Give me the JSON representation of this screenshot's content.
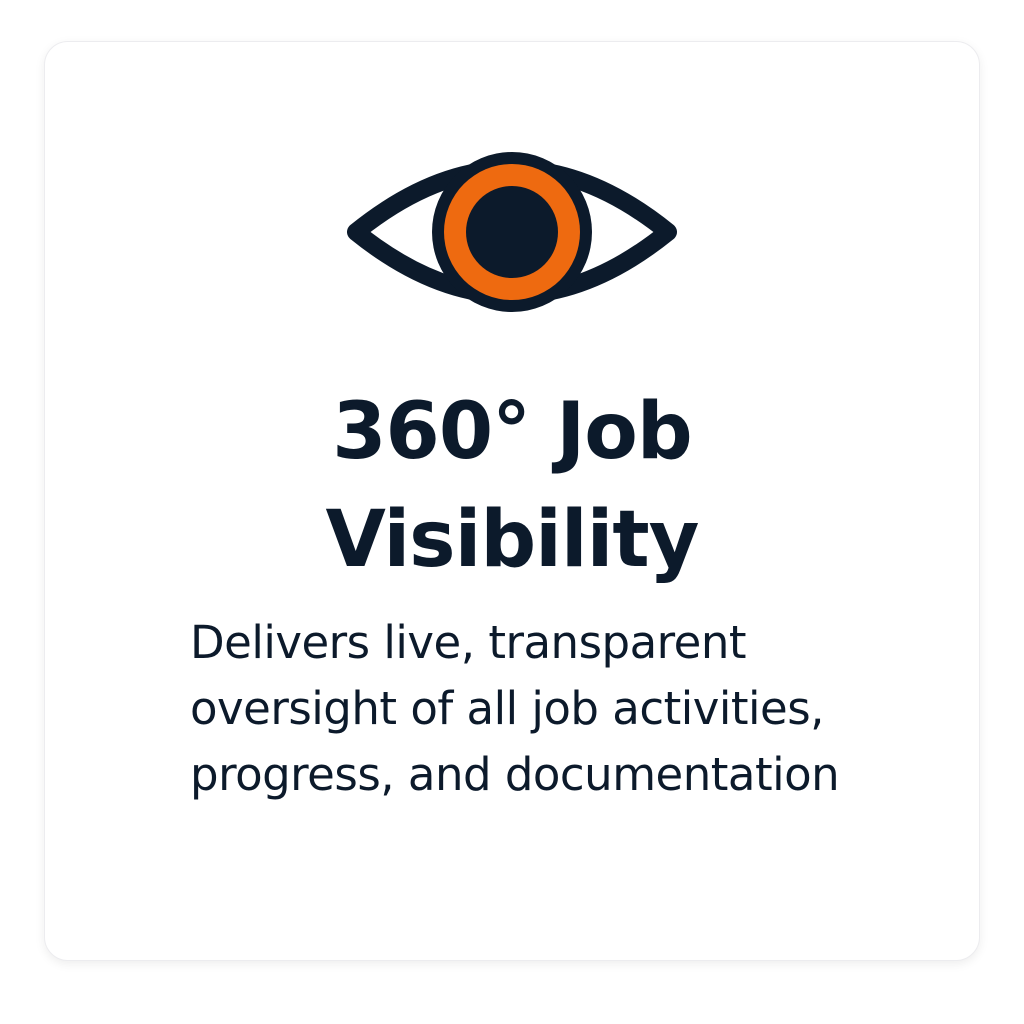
{
  "card": {
    "icon": "eye-icon",
    "title_lines": [
      "360° Job",
      "Visibility"
    ],
    "description_lines": [
      "Delivers live, transparent",
      "oversight of all job activities,",
      "progress, and documentation"
    ]
  },
  "colors": {
    "dark": "#0c1a2b",
    "accent": "#ee6a10",
    "background": "#ffffff"
  }
}
